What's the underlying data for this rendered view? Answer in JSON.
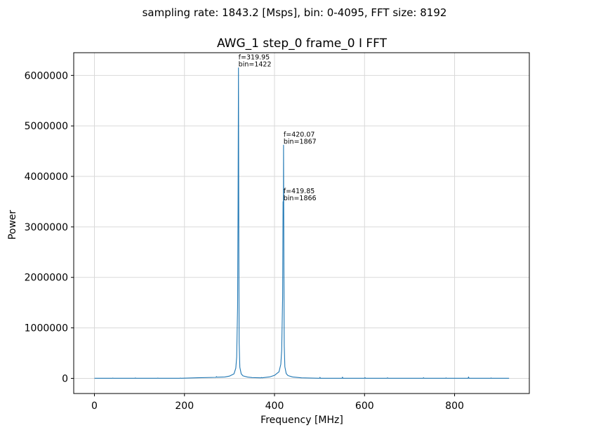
{
  "figure": {
    "suptitle": "sampling rate: 1843.2 [Msps],  bin: 0-4095,  FFT size: 8192"
  },
  "chart_data": {
    "type": "line",
    "title": "AWG_1 step_0 frame_0 I FFT",
    "xlabel": "Frequency [MHz]",
    "ylabel": "Power",
    "xlim": [
      -46,
      966
    ],
    "ylim": [
      -300000,
      6450000
    ],
    "grid": true,
    "xticks": [
      0,
      200,
      400,
      600,
      800
    ],
    "yticks": [
      0,
      1000000,
      2000000,
      3000000,
      4000000,
      5000000,
      6000000
    ],
    "line_color": "#1f77b4",
    "series": [
      {
        "x": [
          0,
          40,
          41,
          42,
          90,
          91,
          92,
          140,
          141,
          142,
          190,
          191,
          192,
          230,
          270,
          271,
          272,
          290,
          300,
          310,
          314,
          316,
          318,
          319,
          319.95,
          320.8,
          321.5,
          323,
          326,
          330,
          340,
          350,
          370,
          371,
          372,
          390,
          400,
          410,
          414,
          416,
          418,
          419,
          419.85,
          420.07,
          420.9,
          421.6,
          423,
          426,
          430,
          440,
          460,
          500,
          501,
          502,
          550,
          551,
          552,
          600,
          601,
          602,
          650,
          651,
          652,
          730,
          731,
          732,
          780,
          781,
          782,
          830,
          831,
          832,
          880,
          881,
          882,
          921
        ],
        "y": [
          2000,
          2000,
          7000,
          2000,
          2000,
          8000,
          2000,
          2000,
          7000,
          2000,
          2000,
          6000,
          2000,
          12000,
          20000,
          35000,
          22000,
          28000,
          45000,
          90000,
          200000,
          420000,
          1400000,
          3300000,
          6150000,
          2500000,
          700000,
          220000,
          90000,
          50000,
          26000,
          16000,
          10000,
          18000,
          10000,
          30000,
          60000,
          130000,
          280000,
          560000,
          1600000,
          3500000,
          3500000,
          4620000,
          2200000,
          650000,
          230000,
          95000,
          55000,
          28000,
          10000,
          2000,
          20000,
          2000,
          2000,
          25000,
          2000,
          2000,
          15000,
          2000,
          2000,
          12000,
          2000,
          2000,
          14000,
          2000,
          2000,
          10000,
          2000,
          2000,
          28000,
          2000,
          2000,
          9000,
          2000,
          2000
        ]
      }
    ],
    "annotations": [
      {
        "x": 319.95,
        "y": 6150000,
        "lines": [
          "f=319.95",
          "bin=1422"
        ]
      },
      {
        "x": 420.07,
        "y": 4620000,
        "lines": [
          "f=420.07",
          "bin=1867"
        ]
      },
      {
        "x": 419.85,
        "y": 3500000,
        "lines": [
          "f=419.85",
          "bin=1866"
        ]
      }
    ]
  }
}
